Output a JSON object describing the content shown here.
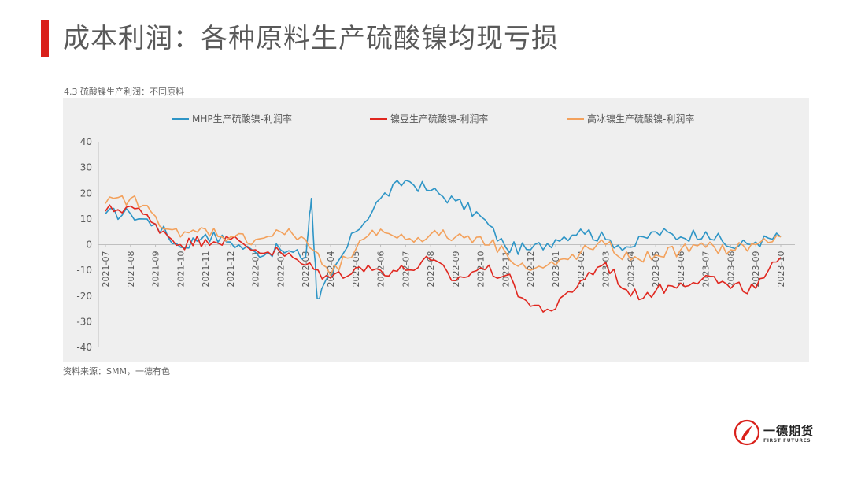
{
  "header": {
    "title": "成本利润：各种原料生产硫酸镍均现亏损",
    "accent_color": "#d9201a"
  },
  "subtitle": "4.3 硫酸镍生产利润：不同原料",
  "source": "资料来源：SMM，一德有色",
  "logo": {
    "name_cn": "一德期货",
    "name_en": "FIRST FUTURES",
    "icon": "flame-logo-icon"
  },
  "chart_data": {
    "type": "line",
    "title": "4.3 硫酸镍生产利润：不同原料",
    "xlabel": "",
    "ylabel": "",
    "ylim": [
      -40,
      40
    ],
    "yticks": [
      40,
      30,
      20,
      10,
      0,
      -10,
      -20,
      -30,
      -40
    ],
    "x_ticks": [
      "2021-07",
      "2021-08",
      "2021-09",
      "2021-10",
      "2021-11",
      "2021-12",
      "2022-01",
      "2022-02",
      "2022-03",
      "2022-04",
      "2022-05",
      "2022-06",
      "2022-07",
      "2022-08",
      "2022-09",
      "2022-10",
      "2022-11",
      "2022-12",
      "2023-01",
      "2023-02",
      "2023-03",
      "2023-04",
      "2023-05",
      "2023-06",
      "2023-07",
      "2023-08",
      "2023-09",
      "2023-10"
    ],
    "x_range": [
      "2021-07",
      "2023-10"
    ],
    "grid": false,
    "legend_position": "top",
    "series": [
      {
        "name": "MHP生产硫酸镍-利润率",
        "color": "#2e95c6",
        "points": [
          [
            "2021-07",
            12
          ],
          [
            "2021-08",
            12
          ],
          [
            "2021-09",
            8
          ],
          [
            "2021-10",
            -1
          ],
          [
            "2021-11",
            4
          ],
          [
            "2021-12",
            1
          ],
          [
            "2022-01",
            -3
          ],
          [
            "2022-02",
            -2
          ],
          [
            "2022-03",
            -5
          ],
          [
            "2022-03",
            18
          ],
          [
            "2022-03",
            -21
          ],
          [
            "2022-04",
            -13
          ],
          [
            "2022-05",
            5
          ],
          [
            "2022-06",
            18
          ],
          [
            "2022-07",
            25
          ],
          [
            "2022-08",
            21
          ],
          [
            "2022-09",
            17
          ],
          [
            "2022-10",
            11
          ],
          [
            "2022-11",
            -1
          ],
          [
            "2022-12",
            -2
          ],
          [
            "2023-01",
            2
          ],
          [
            "2023-02",
            6
          ],
          [
            "2023-03",
            2
          ],
          [
            "2023-04",
            -1
          ],
          [
            "2023-05",
            5
          ],
          [
            "2023-06",
            3
          ],
          [
            "2023-07",
            5
          ],
          [
            "2023-08",
            -1
          ],
          [
            "2023-09",
            1
          ],
          [
            "2023-10",
            3
          ]
        ]
      },
      {
        "name": "镍豆生产硫酸镍-利润率",
        "color": "#e0271f",
        "points": [
          [
            "2021-07",
            13
          ],
          [
            "2021-08",
            15
          ],
          [
            "2021-09",
            8
          ],
          [
            "2021-10",
            0
          ],
          [
            "2021-11",
            2
          ],
          [
            "2021-12",
            2
          ],
          [
            "2022-01",
            -2
          ],
          [
            "2022-02",
            -3
          ],
          [
            "2022-03",
            -8
          ],
          [
            "2022-04",
            -13
          ],
          [
            "2022-05",
            -9
          ],
          [
            "2022-06",
            -10
          ],
          [
            "2022-07",
            -10
          ],
          [
            "2022-08",
            -6
          ],
          [
            "2022-09",
            -14
          ],
          [
            "2022-10",
            -9
          ],
          [
            "2022-11",
            -12
          ],
          [
            "2022-12",
            -24
          ],
          [
            "2023-01",
            -25
          ],
          [
            "2023-02",
            -14
          ],
          [
            "2023-03",
            -7
          ],
          [
            "2023-04",
            -20
          ],
          [
            "2023-05",
            -18
          ],
          [
            "2023-06",
            -15
          ],
          [
            "2023-07",
            -12
          ],
          [
            "2023-08",
            -17
          ],
          [
            "2023-09",
            -17
          ],
          [
            "2023-10",
            -5
          ]
        ]
      },
      {
        "name": "高冰镍生产硫酸镍-利润率",
        "color": "#f3a15c",
        "points": [
          [
            "2021-07",
            16
          ],
          [
            "2021-08",
            18
          ],
          [
            "2021-09",
            11
          ],
          [
            "2021-10",
            3
          ],
          [
            "2021-11",
            6
          ],
          [
            "2021-12",
            3
          ],
          [
            "2022-01",
            2
          ],
          [
            "2022-02",
            5
          ],
          [
            "2022-03",
            2
          ],
          [
            "2022-04",
            -12
          ],
          [
            "2022-05",
            -2
          ],
          [
            "2022-06",
            6
          ],
          [
            "2022-07",
            2
          ],
          [
            "2022-08",
            4
          ],
          [
            "2022-09",
            3
          ],
          [
            "2022-10",
            3
          ],
          [
            "2022-11",
            -3
          ],
          [
            "2022-12",
            -10
          ],
          [
            "2023-01",
            -8
          ],
          [
            "2023-02",
            -3
          ],
          [
            "2023-03",
            0
          ],
          [
            "2023-04",
            -6
          ],
          [
            "2023-05",
            -4
          ],
          [
            "2023-06",
            -2
          ],
          [
            "2023-07",
            -1
          ],
          [
            "2023-08",
            -2
          ],
          [
            "2023-09",
            0
          ],
          [
            "2023-10",
            3
          ]
        ]
      }
    ]
  }
}
